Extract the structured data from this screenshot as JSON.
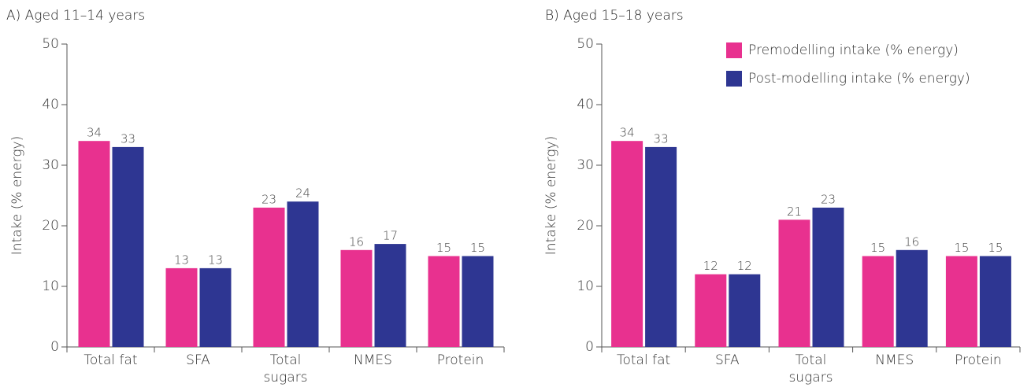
{
  "chart_data": [
    {
      "type": "bar",
      "title": "A) Aged 11–14 years",
      "ylabel": "Intake (% energy)",
      "categories": [
        "Total fat",
        "SFA",
        "Total sugars",
        "NMES",
        "Protein"
      ],
      "series": [
        {
          "name": "Premodelling intake (% energy)",
          "color": "#e8318f",
          "values": [
            34,
            13,
            23,
            16,
            15
          ]
        },
        {
          "name": "Post-modelling intake (% energy)",
          "color": "#2e3692",
          "values": [
            33,
            13,
            24,
            17,
            15
          ]
        }
      ],
      "ylim": [
        0,
        50
      ],
      "yticks": [
        0,
        10,
        20,
        30,
        40,
        50
      ]
    },
    {
      "type": "bar",
      "title": "B) Aged 15–18 years",
      "ylabel": "Intake (% energy)",
      "categories": [
        "Total fat",
        "SFA",
        "Total sugars",
        "NMES",
        "Protein"
      ],
      "series": [
        {
          "name": "Premodelling intake (% energy)",
          "color": "#e8318f",
          "values": [
            34,
            12,
            21,
            15,
            15
          ]
        },
        {
          "name": "Post-modelling intake (% energy)",
          "color": "#2e3692",
          "values": [
            33,
            12,
            23,
            16,
            15
          ]
        }
      ],
      "ylim": [
        0,
        50
      ],
      "yticks": [
        0,
        10,
        20,
        30,
        40,
        50
      ],
      "legend": "upper right"
    }
  ]
}
